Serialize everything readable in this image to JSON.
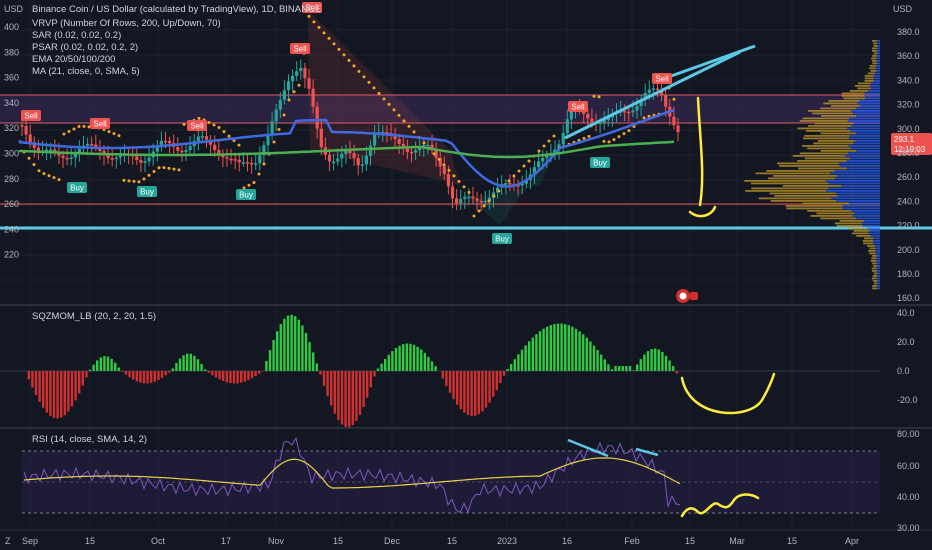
{
  "colors": {
    "bg": "#131722",
    "grid": "#1e222d",
    "up": "#26a69a",
    "down": "#ef5350",
    "ema_blue": "#3f6ae0",
    "ema_green": "#4caf50",
    "sar": "#f5a623",
    "cyan": "#5bc8e6",
    "yellow": "#ffeb3b",
    "sqz_up": "#2ecc40",
    "sqz_dn": "#d32f2f",
    "rsi": "#7e57c2",
    "rsi_ma": "#e8d24a"
  },
  "header": {
    "top_left_unit": "USD",
    "top_right_unit": "USD",
    "title": "Binance Coin / US Dollar (calculated by TradingView), 1D, BINANCE",
    "studies": [
      "VRVP (Number Of Rows, 200, Up/Down, 70)",
      "SAR (0.02, 0.02, 0.2)",
      "PSAR (0.02, 0.02, 0.2, 2)",
      "EMA 20/50/100/200",
      "MA (21, close, 0, SMA, 5)"
    ]
  },
  "left_axis": [
    "400",
    "380",
    "360",
    "340",
    "320",
    "300",
    "280",
    "260",
    "240",
    "220"
  ],
  "right_axis": [
    "380.0",
    "360.0",
    "340.0",
    "320.0",
    "300.0",
    "280.0",
    "260.0",
    "240.0",
    "220.0",
    "200.0",
    "180.0",
    "160.0"
  ],
  "price_tag": {
    "price": "293.1",
    "timer": "12:19:03"
  },
  "sqz_title": "SQZMOM_LB (20, 2, 20, 1.5)",
  "sqz_axis": [
    "40.0",
    "20.0",
    "0.0",
    "-20.0"
  ],
  "rsi_title": "RSI (14, close, SMA, 14, 2)",
  "rsi_axis": [
    "80.00",
    "60.00",
    "40.00",
    "30.00"
  ],
  "x_axis": [
    "Sep",
    "15",
    "Oct",
    "17",
    "Nov",
    "15",
    "Dec",
    "15",
    "2023",
    "16",
    "Feb",
    "15",
    "Mar",
    "15",
    "Apr"
  ],
  "signals": {
    "buy": "Buy",
    "sell": "Sell"
  },
  "corner_logo": "Z",
  "chart_data": {
    "type": "candlestick",
    "symbol": "BNB/USD",
    "interval": "1D",
    "price_range": [
      215,
      405
    ],
    "horizontal_levels": [
      330,
      309,
      278,
      260
    ],
    "buy_signals": [
      "2022-09-06",
      "2022-09-26",
      "2022-10-24",
      "2023-01-02",
      "2023-02-01"
    ],
    "sell_signals": [
      "2022-08-28",
      "2022-09-17",
      "2022-10-10",
      "2022-11-06",
      "2022-11-08",
      "2023-01-17",
      "2023-02-07"
    ],
    "current_price": 293.1
  }
}
